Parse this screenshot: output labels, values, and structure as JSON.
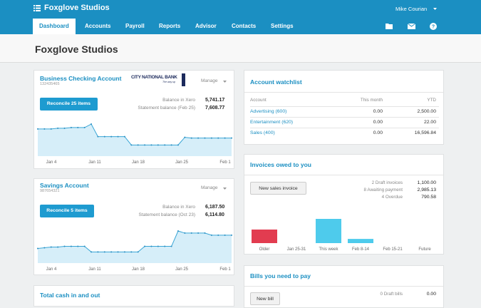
{
  "header": {
    "org": "Foxglove Studios",
    "user": "Mike Courian"
  },
  "nav": [
    "Dashboard",
    "Accounts",
    "Payroll",
    "Reports",
    "Advisor",
    "Contacts",
    "Settings"
  ],
  "page_title": "Foxglove Studios",
  "bank_accounts": [
    {
      "name": "Business Checking Account",
      "number": "132435465",
      "bank": "CITY NATIONAL BANK",
      "bank_tagline": "The way up",
      "manage": "Manage",
      "reconcile": "Reconcile 25 items",
      "balances": [
        {
          "label": "Balance in Xero",
          "value": "5,741.17"
        },
        {
          "label": "Statement balance (Feb 25)",
          "value": "7,608.77"
        }
      ],
      "chart": {
        "type": "line",
        "x_labels": [
          "Jan 4",
          "Jan 11",
          "Jan 18",
          "Jan 25",
          "Feb 1"
        ],
        "values": [
          39,
          39,
          39,
          40,
          40,
          41,
          41,
          41,
          46,
          28,
          28,
          28,
          28,
          28,
          16,
          16,
          16,
          16,
          16,
          16,
          16,
          16,
          27,
          26,
          26,
          26,
          26,
          26,
          26,
          26
        ]
      }
    },
    {
      "name": "Savings Account",
      "number": "987654321",
      "manage": "Manage",
      "reconcile": "Reconcile 5 items",
      "balances": [
        {
          "label": "Balance in Xero",
          "value": "6,187.50"
        },
        {
          "label": "Statement balance (Oct 23)",
          "value": "6,114.80"
        }
      ],
      "chart": {
        "type": "line",
        "x_labels": [
          "Jan 4",
          "Jan 11",
          "Jan 18",
          "Jan 25",
          "Feb 1"
        ],
        "values": [
          21,
          22,
          23,
          23,
          24,
          24,
          24,
          24,
          16,
          16,
          16,
          16,
          16,
          16,
          16,
          16,
          24,
          24,
          24,
          24,
          24,
          46,
          43,
          43,
          43,
          43,
          40,
          40,
          40,
          40
        ]
      }
    }
  ],
  "cash_panel": {
    "title": "Total cash in and out"
  },
  "watchlist": {
    "title": "Account watchlist",
    "columns": [
      "Account",
      "This month",
      "YTD"
    ],
    "rows": [
      [
        "Advertising (600)",
        "0.00",
        "2,500.00"
      ],
      [
        "Entertainment (620)",
        "0.00",
        "22.00"
      ],
      [
        "Sales (400)",
        "0.00",
        "16,596.84"
      ]
    ]
  },
  "invoices": {
    "title": "Invoices owed to you",
    "button": "New sales invoice",
    "summary": [
      {
        "label": "2 Draft invoices",
        "value": "1,100.00"
      },
      {
        "label": "8 Awaiting payment",
        "value": "2,985.13"
      },
      {
        "label": "4 Overdue",
        "value": "790.58"
      }
    ],
    "chart": {
      "type": "bar",
      "categories": [
        "Older",
        "Jan 25-31",
        "This week",
        "Feb 8-14",
        "Feb 15-21",
        "Future"
      ],
      "values": [
        790,
        0,
        1950,
        245,
        0,
        0
      ],
      "colors": [
        "#e23c50",
        "#4ecbec",
        "#4ecbec",
        "#4ecbec",
        "#4ecbec",
        "#4ecbec"
      ]
    }
  },
  "bills": {
    "title": "Bills you need to pay",
    "button": "New bill",
    "summary": [
      {
        "label": "0 Draft bills",
        "value": "0.00"
      }
    ]
  }
}
